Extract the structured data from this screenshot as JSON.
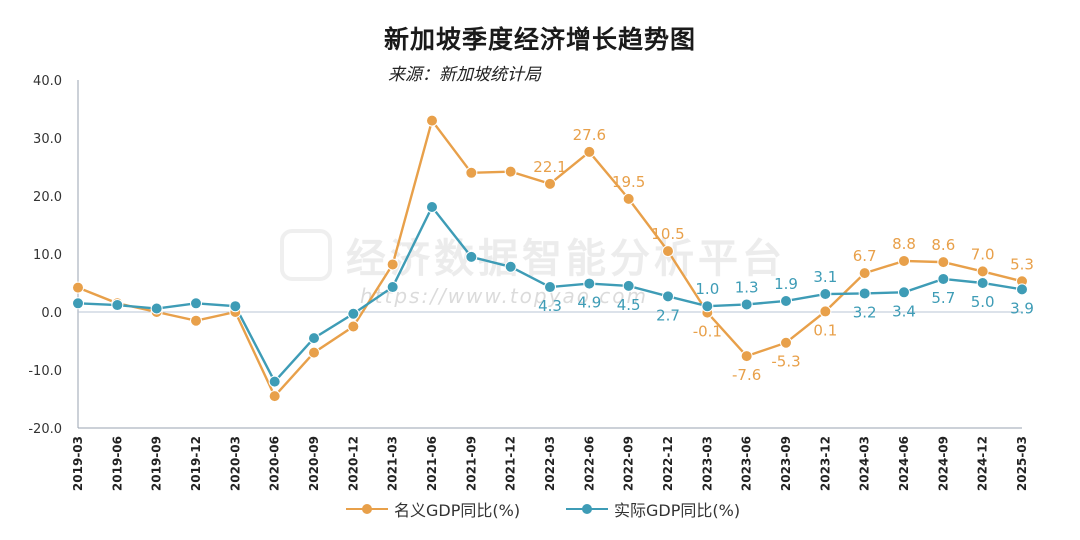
{
  "chart_data": {
    "type": "line",
    "title": "新加坡季度经济增长趋势图",
    "subtitle": "来源：新加坡统计局",
    "categories": [
      "2019-03",
      "2019-06",
      "2019-09",
      "2019-12",
      "2020-03",
      "2020-06",
      "2020-09",
      "2020-12",
      "2021-03",
      "2021-06",
      "2021-09",
      "2021-12",
      "2022-03",
      "2022-06",
      "2022-09",
      "2022-12",
      "2023-03",
      "2023-06",
      "2023-09",
      "2023-12",
      "2024-03",
      "2024-06",
      "2024-09",
      "2024-12",
      "2025-03"
    ],
    "ylim": [
      -20,
      40
    ],
    "yticks": [
      -20,
      -10,
      0,
      10,
      20,
      30,
      40
    ],
    "ytick_labels": [
      "-20.0",
      "-10.0",
      "0.0",
      "10.0",
      "20.0",
      "30.0",
      "40.0"
    ],
    "legend_position": "bottom",
    "grid": false,
    "series": [
      {
        "name": "名义GDP同比(%)",
        "color": "#E8A04A",
        "values": [
          4.2,
          1.5,
          0.0,
          -1.5,
          0.0,
          -14.5,
          -7.0,
          -2.5,
          8.2,
          33.0,
          24.0,
          24.2,
          22.1,
          27.6,
          19.5,
          10.5,
          -0.1,
          -7.6,
          -5.3,
          0.1,
          6.7,
          8.8,
          8.6,
          7.0,
          5.3
        ],
        "data_labels": [
          null,
          null,
          null,
          null,
          null,
          null,
          null,
          null,
          null,
          null,
          null,
          null,
          "22.1",
          "27.6",
          "19.5",
          "10.5",
          "-0.1",
          "-7.6",
          "-5.3",
          "0.1",
          "6.7",
          "8.8",
          "8.6",
          "7.0",
          "5.3"
        ]
      },
      {
        "name": "实际GDP同比(%)",
        "color": "#3E9CB6",
        "values": [
          1.5,
          1.2,
          0.6,
          1.5,
          1.0,
          -12.0,
          -4.5,
          -0.3,
          4.3,
          18.1,
          9.5,
          7.8,
          4.3,
          4.9,
          4.5,
          2.7,
          1.0,
          1.3,
          1.9,
          3.1,
          3.2,
          3.4,
          5.7,
          5.0,
          3.9
        ],
        "data_labels": [
          null,
          null,
          null,
          null,
          null,
          null,
          null,
          null,
          null,
          null,
          null,
          null,
          "4.3",
          "4.9",
          "4.5",
          "2.7",
          "1.0",
          "1.3",
          "1.9",
          "3.1",
          "3.2",
          "3.4",
          "5.7",
          "5.0",
          "3.9"
        ]
      }
    ]
  },
  "watermark": {
    "text": "经济数据智能分析平台",
    "url": "https://www.topyao.com"
  }
}
